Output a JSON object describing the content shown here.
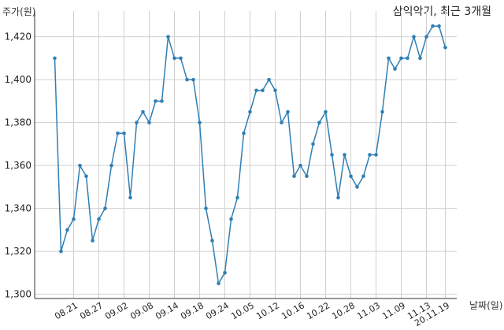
{
  "chart_data": {
    "type": "line",
    "title": "삼익악기, 최근 3개월",
    "ylabel": "주가(원)",
    "xlabel": "날짜(일)",
    "ylim": [
      1298,
      1432
    ],
    "yticks": [
      1300,
      1320,
      1340,
      1360,
      1380,
      1400,
      1420
    ],
    "ytick_labels": [
      "1,300",
      "1,320",
      "1,340",
      "1,360",
      "1,380",
      "1,400",
      "1,420"
    ],
    "xtick_labels": [
      "08.21",
      "08.27",
      "09.02",
      "09.08",
      "09.14",
      "09.18",
      "09.24",
      "10.05",
      "10.12",
      "10.16",
      "10.22",
      "10.28",
      "11.03",
      "11.09",
      "11.13",
      "20.11.19"
    ],
    "xtick_index": [
      3,
      7,
      11,
      15,
      19,
      23,
      27,
      31,
      35,
      39,
      43,
      47,
      51,
      55,
      59,
      62
    ],
    "grid": true,
    "line_color": "#2f7fb5",
    "series": [
      {
        "values": [
          1410,
          1320,
          1330,
          1335,
          1360,
          1355,
          1325,
          1335,
          1340,
          1360,
          1375,
          1375,
          1345,
          1380,
          1385,
          1380,
          1390,
          1390,
          1420,
          1410,
          1410,
          1400,
          1400,
          1380,
          1340,
          1325,
          1305,
          1310,
          1335,
          1345,
          1375,
          1385,
          1395,
          1395,
          1400,
          1395,
          1380,
          1385,
          1355,
          1360,
          1355,
          1370,
          1380,
          1385,
          1365,
          1345,
          1365,
          1355,
          1350,
          1355,
          1365,
          1365,
          1385,
          1410,
          1405,
          1410,
          1410,
          1420,
          1410,
          1420,
          1425,
          1425,
          1415
        ]
      }
    ]
  }
}
